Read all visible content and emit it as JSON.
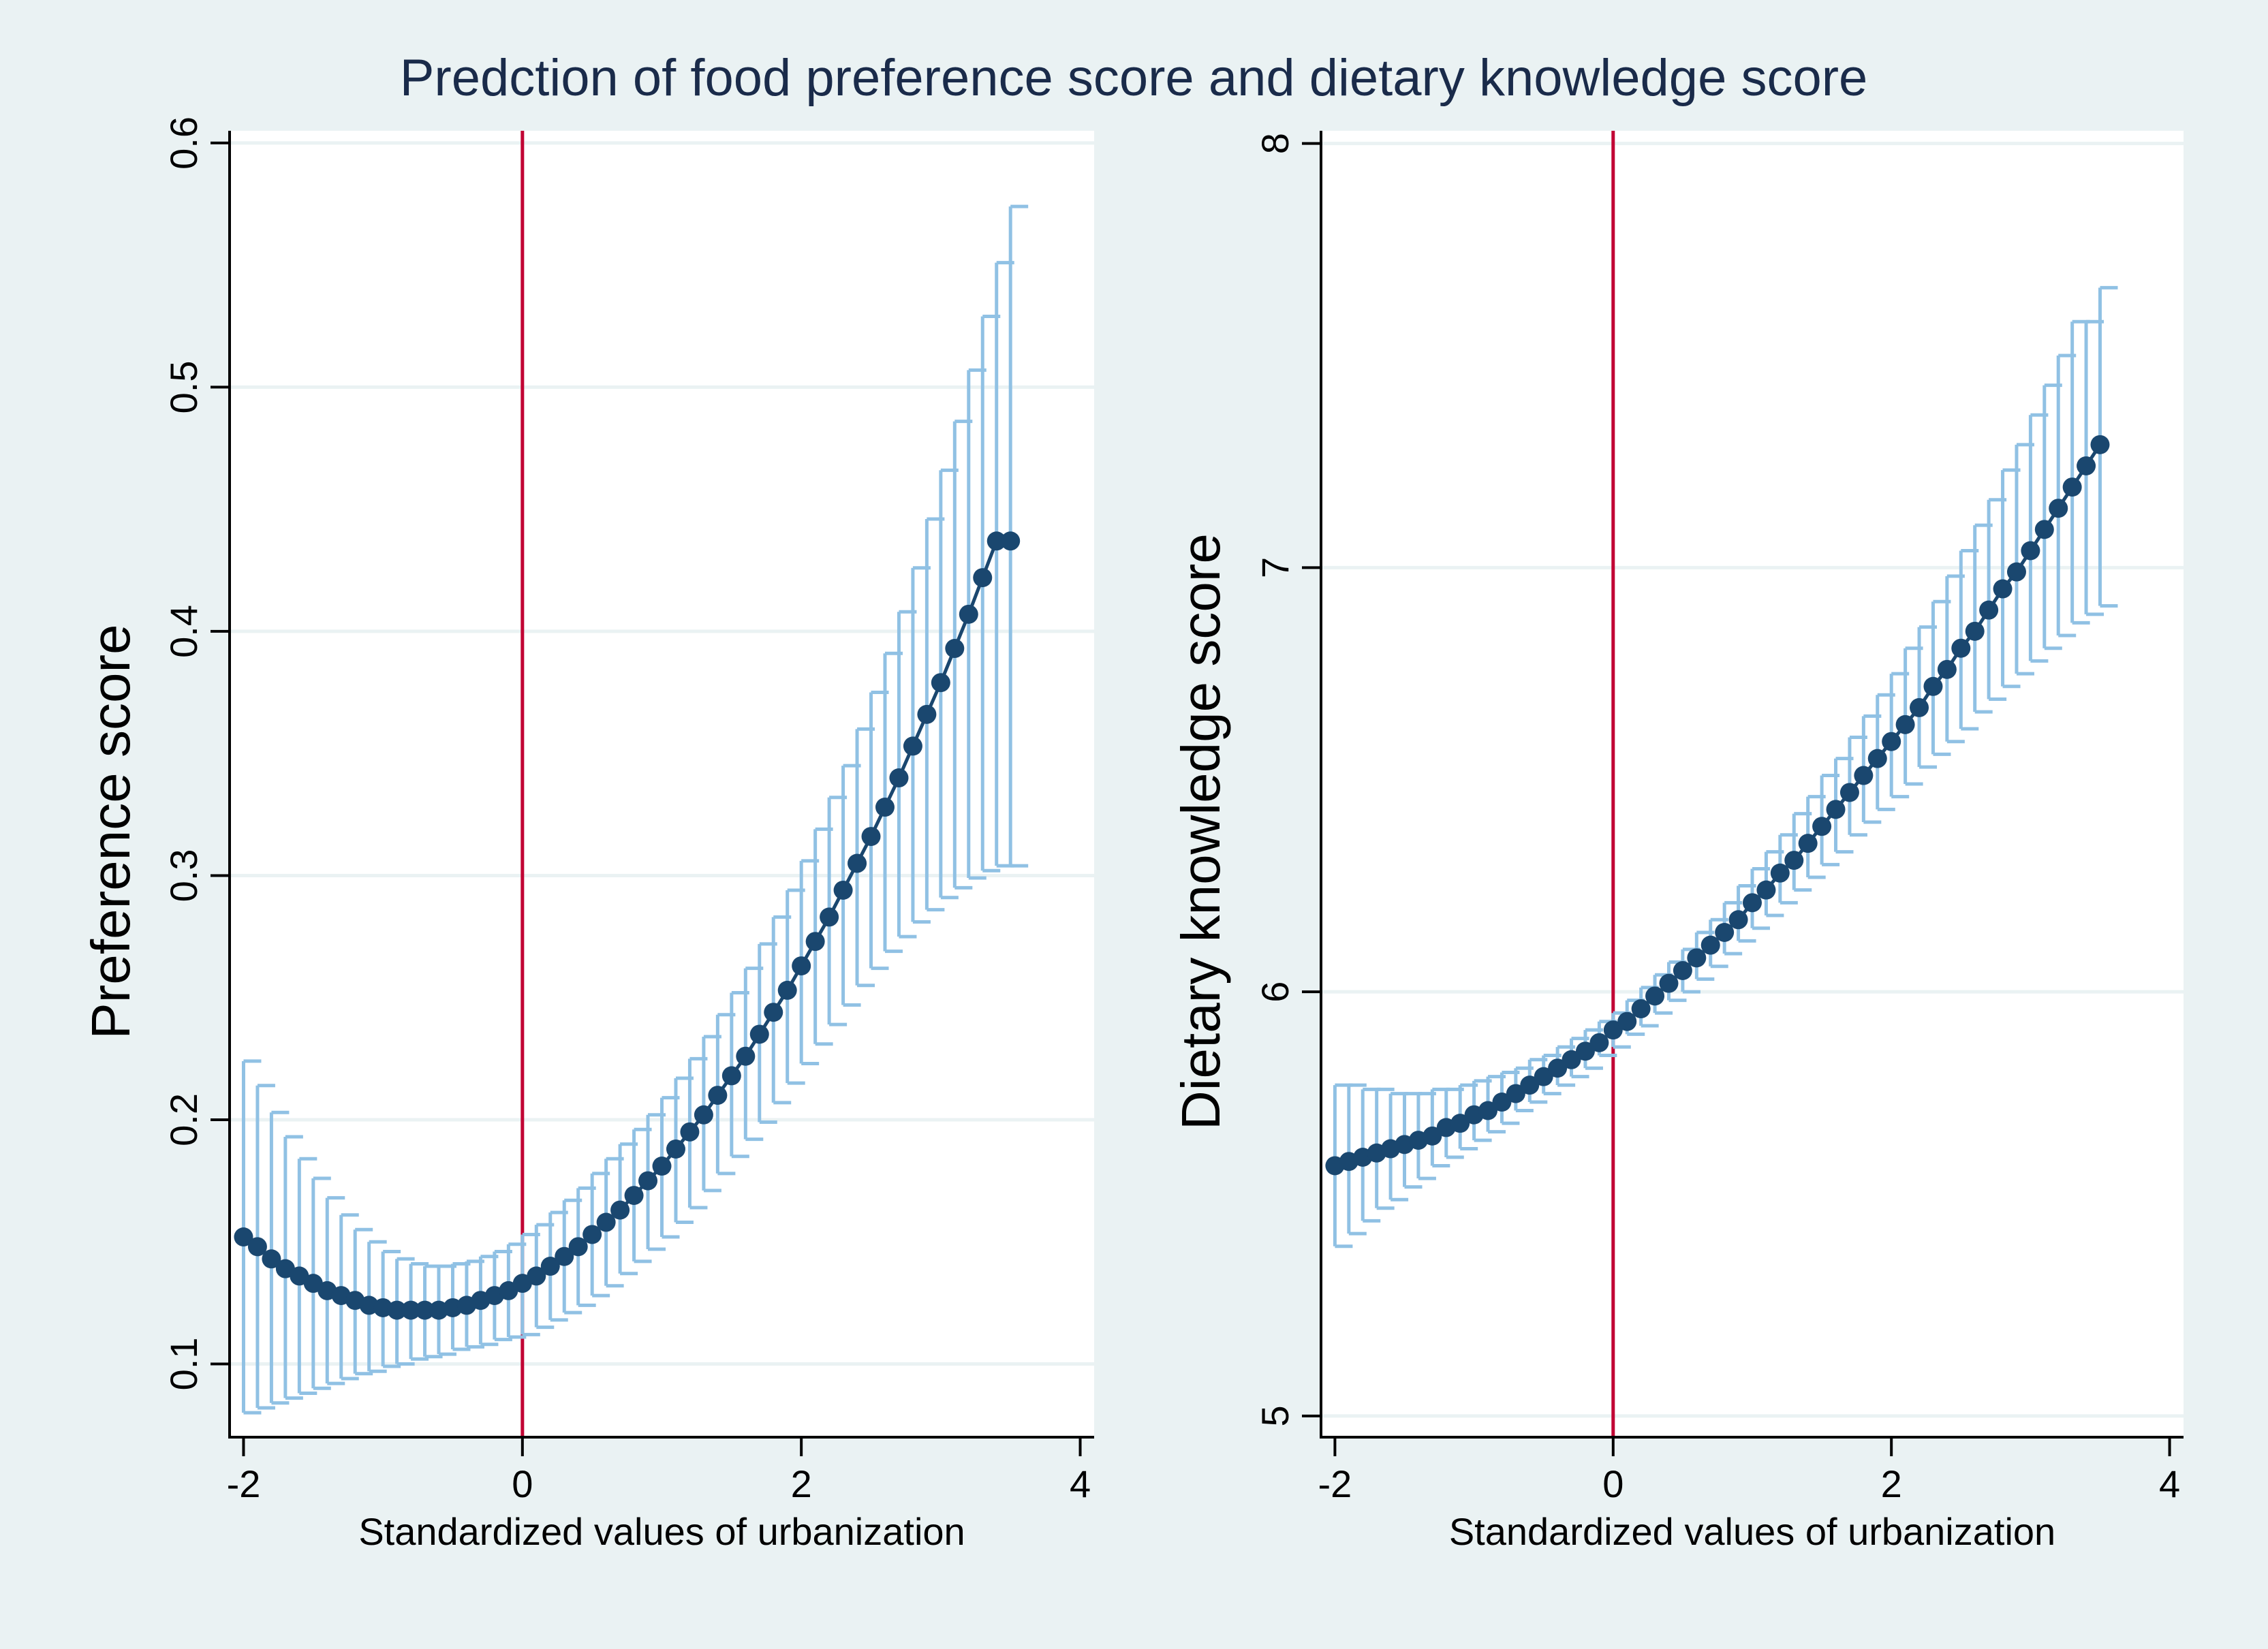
{
  "title": "Predction of food preference score and dietary knowledge score",
  "colors": {
    "outer_background": "#eaf2f3",
    "plot_background": "#ffffff",
    "gridline": "#eaf2f3",
    "axis": "#000000",
    "marker": "#1a476f",
    "error_bar": "#90c1e4",
    "reference_line": "#c10534",
    "text": "#000000",
    "title_text": "#1a2b4a"
  },
  "chart_data": [
    {
      "type": "scatter",
      "title": "",
      "xlabel": "Standardized values of urbanization",
      "ylabel": "Preference score",
      "xlim": [
        -2.1,
        4.1
      ],
      "ylim": [
        0.07,
        0.605
      ],
      "xticks": [
        -2,
        0,
        2,
        4
      ],
      "xtick_labels": [
        "-2",
        "0",
        "2",
        "4"
      ],
      "yticks": [
        0.1,
        0.2,
        0.3,
        0.4,
        0.5,
        0.6
      ],
      "ytick_labels": [
        "0.1",
        "0.2",
        "0.3",
        "0.4",
        "0.5",
        "0.6"
      ],
      "grid": true,
      "reference_line_x": 0,
      "series": [
        {
          "name": "Predicted preference score",
          "x": [
            -2.0,
            -1.9,
            -1.8,
            -1.7,
            -1.6,
            -1.5,
            -1.4,
            -1.3,
            -1.2,
            -1.1,
            -1.0,
            -0.9,
            -0.8,
            -0.7,
            -0.6,
            -0.5,
            -0.4,
            -0.3,
            -0.2,
            -0.1,
            0.0,
            0.1,
            0.2,
            0.3,
            0.4,
            0.5,
            0.6,
            0.7,
            0.8,
            0.9,
            1.0,
            1.1,
            1.2,
            1.3,
            1.4,
            1.5,
            1.6,
            1.7,
            1.8,
            1.9,
            2.0,
            2.1,
            2.2,
            2.3,
            2.4,
            2.5,
            2.6,
            2.7,
            2.8,
            2.9,
            3.0,
            3.1,
            3.2,
            3.3,
            3.4,
            3.5
          ],
          "y": [
            0.152,
            0.148,
            0.143,
            0.139,
            0.136,
            0.133,
            0.13,
            0.128,
            0.126,
            0.124,
            0.123,
            0.122,
            0.122,
            0.122,
            0.122,
            0.123,
            0.124,
            0.126,
            0.128,
            0.13,
            0.133,
            0.136,
            0.14,
            0.144,
            0.148,
            0.153,
            0.158,
            0.163,
            0.169,
            0.175,
            0.181,
            0.188,
            0.195,
            0.202,
            0.21,
            0.218,
            0.226,
            0.235,
            0.244,
            0.253,
            0.263,
            0.273,
            0.283,
            0.294,
            0.305,
            0.316,
            0.328,
            0.34,
            0.353,
            0.366,
            0.379,
            0.393,
            0.407,
            0.422,
            0.437,
            0.437
          ],
          "ci_lower": [
            0.08,
            0.082,
            0.084,
            0.086,
            0.088,
            0.09,
            0.092,
            0.094,
            0.096,
            0.097,
            0.099,
            0.1,
            0.102,
            0.103,
            0.104,
            0.106,
            0.107,
            0.108,
            0.11,
            0.111,
            0.112,
            0.115,
            0.118,
            0.121,
            0.124,
            0.128,
            0.132,
            0.137,
            0.142,
            0.147,
            0.152,
            0.158,
            0.164,
            0.171,
            0.178,
            0.185,
            0.192,
            0.199,
            0.207,
            0.215,
            0.223,
            0.231,
            0.239,
            0.247,
            0.255,
            0.262,
            0.269,
            0.275,
            0.281,
            0.286,
            0.291,
            0.295,
            0.299,
            0.302,
            0.304,
            0.304
          ],
          "ci_upper": [
            0.224,
            0.214,
            0.203,
            0.193,
            0.184,
            0.176,
            0.168,
            0.161,
            0.155,
            0.15,
            0.146,
            0.143,
            0.141,
            0.14,
            0.14,
            0.141,
            0.142,
            0.144,
            0.146,
            0.149,
            0.153,
            0.157,
            0.162,
            0.167,
            0.172,
            0.178,
            0.184,
            0.19,
            0.196,
            0.202,
            0.209,
            0.217,
            0.225,
            0.234,
            0.243,
            0.252,
            0.262,
            0.272,
            0.283,
            0.294,
            0.306,
            0.319,
            0.332,
            0.345,
            0.36,
            0.375,
            0.391,
            0.408,
            0.426,
            0.446,
            0.466,
            0.486,
            0.507,
            0.529,
            0.551,
            0.574
          ]
        }
      ]
    },
    {
      "type": "scatter",
      "title": "",
      "xlabel": "Standardized values of urbanization",
      "ylabel": "Dietary knowledge score",
      "xlim": [
        -2.1,
        4.1
      ],
      "ylim": [
        4.95,
        8.03
      ],
      "xticks": [
        -2,
        0,
        2,
        4
      ],
      "xtick_labels": [
        "-2",
        "0",
        "2",
        "4"
      ],
      "yticks": [
        5,
        6,
        7,
        8
      ],
      "ytick_labels": [
        "5",
        "6",
        "7",
        "8"
      ],
      "grid": true,
      "reference_line_x": 0,
      "series": [
        {
          "name": "Predicted dietary knowledge score",
          "x": [
            -2.0,
            -1.9,
            -1.8,
            -1.7,
            -1.6,
            -1.5,
            -1.4,
            -1.3,
            -1.2,
            -1.1,
            -1.0,
            -0.9,
            -0.8,
            -0.7,
            -0.6,
            -0.5,
            -0.4,
            -0.3,
            -0.2,
            -0.1,
            0.0,
            0.1,
            0.2,
            0.3,
            0.4,
            0.5,
            0.6,
            0.7,
            0.8,
            0.9,
            1.0,
            1.1,
            1.2,
            1.3,
            1.4,
            1.5,
            1.6,
            1.7,
            1.8,
            1.9,
            2.0,
            2.1,
            2.2,
            2.3,
            2.4,
            2.5,
            2.6,
            2.7,
            2.8,
            2.9,
            3.0,
            3.1,
            3.2,
            3.3,
            3.4,
            3.5
          ],
          "y": [
            5.59,
            5.6,
            5.61,
            5.62,
            5.63,
            5.64,
            5.65,
            5.66,
            5.68,
            5.69,
            5.71,
            5.72,
            5.74,
            5.76,
            5.78,
            5.8,
            5.82,
            5.84,
            5.86,
            5.88,
            5.91,
            5.93,
            5.96,
            5.99,
            6.02,
            6.05,
            6.08,
            6.11,
            6.14,
            6.17,
            6.21,
            6.24,
            6.28,
            6.31,
            6.35,
            6.39,
            6.43,
            6.47,
            6.51,
            6.55,
            6.59,
            6.63,
            6.67,
            6.72,
            6.76,
            6.81,
            6.85,
            6.9,
            6.95,
            6.99,
            7.04,
            7.09,
            7.14,
            7.19,
            7.24,
            7.29
          ],
          "ci_lower": [
            5.4,
            5.43,
            5.46,
            5.49,
            5.51,
            5.54,
            5.56,
            5.59,
            5.61,
            5.63,
            5.65,
            5.67,
            5.69,
            5.72,
            5.74,
            5.76,
            5.78,
            5.8,
            5.82,
            5.85,
            5.87,
            5.9,
            5.92,
            5.95,
            5.98,
            6.0,
            6.03,
            6.06,
            6.09,
            6.12,
            6.15,
            6.18,
            6.21,
            6.24,
            6.27,
            6.3,
            6.33,
            6.37,
            6.4,
            6.43,
            6.46,
            6.49,
            6.53,
            6.56,
            6.59,
            6.62,
            6.66,
            6.69,
            6.72,
            6.75,
            6.78,
            6.81,
            6.84,
            6.87,
            6.89,
            6.91
          ],
          "ci_upper": [
            5.78,
            5.78,
            5.77,
            5.77,
            5.76,
            5.76,
            5.76,
            5.77,
            5.77,
            5.78,
            5.79,
            5.8,
            5.81,
            5.82,
            5.84,
            5.85,
            5.87,
            5.89,
            5.91,
            5.93,
            5.95,
            5.98,
            6.01,
            6.04,
            6.07,
            6.1,
            6.14,
            6.17,
            6.21,
            6.25,
            6.29,
            6.33,
            6.37,
            6.42,
            6.46,
            6.51,
            6.55,
            6.6,
            6.65,
            6.7,
            6.75,
            6.81,
            6.86,
            6.92,
            6.98,
            7.04,
            7.1,
            7.16,
            7.23,
            7.29,
            7.36,
            7.43,
            7.5,
            7.58,
            7.58,
            7.66
          ]
        }
      ]
    }
  ]
}
